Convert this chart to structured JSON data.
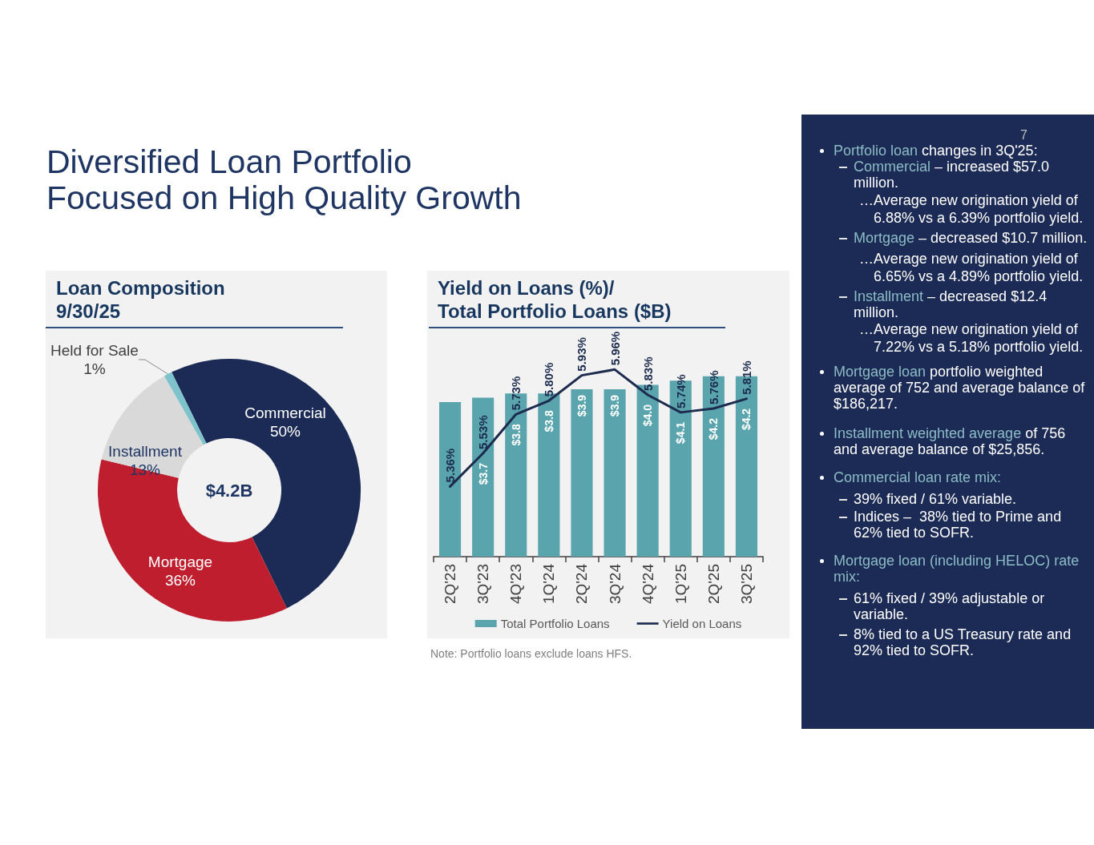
{
  "chart_data": [
    {
      "type": "other",
      "title": "Diversified Loan Portfolio\nFocused on High Quality Growth"
    },
    {
      "type": "donut",
      "title": "Loan Composition\n9/30/25",
      "categories": [
        "Commercial",
        "Mortgage",
        "Installment",
        "Held for Sale"
      ],
      "values": [
        50,
        36,
        13,
        1
      ],
      "colors": [
        "#1b2b55",
        "#be1e2d",
        "#d9d9d9",
        "#7ec3cb"
      ],
      "value_labels": [
        "50%",
        "36%",
        "13%",
        "1%"
      ],
      "annotations": [
        "$4.2B"
      ]
    },
    {
      "type": "bar",
      "title": "Yield on Loans (%)/\nTotal Portfolio Loans ($B)",
      "categories": [
        "2Q'23",
        "3Q'23",
        "4Q'23",
        "1Q'24",
        "2Q'24",
        "3Q'24",
        "4Q'24",
        "1Q'25",
        "2Q'25",
        "3Q'25"
      ],
      "series": [
        {
          "name": "Total Portfolio Loans",
          "type": "bar",
          "color": "#5aa5ad",
          "values": [
            3.6,
            3.7,
            3.8,
            3.8,
            3.9,
            3.9,
            4.0,
            4.1,
            4.2,
            4.2
          ],
          "value_labels": [
            null,
            "$3.7",
            "$3.8",
            "$3.8",
            "$3.9",
            "$3.9",
            "$4.0",
            "$4.1",
            "$4.2",
            "$4.2"
          ]
        },
        {
          "name": "Yield on Loans",
          "type": "line",
          "axis": "y2",
          "color": "#1c2b4e",
          "values": [
            5.36,
            5.53,
            5.73,
            5.8,
            5.93,
            5.96,
            5.83,
            5.74,
            5.76,
            5.81
          ],
          "value_labels": [
            "5.36%",
            "5.53%",
            "5.73%",
            "5.80%",
            "5.93%",
            "5.96%",
            "5.83%",
            "5.74%",
            "5.76%",
            "5.81%"
          ]
        }
      ],
      "legend": "bottom",
      "tick_labels": "x",
      "annotations": [
        "Note: Portfolio loans exclude loans HFS."
      ]
    },
    {
      "type": "other",
      "annotations": [
        "7",
        "Portfolio loan",
        "changes in 3Q'25:",
        "Commercial",
        "– increased $57.0 million.",
        "…Average new origination yield of 6.88% vs a 6.39% portfolio yield.",
        "Mortgage",
        "– decreased $10.7 million.",
        "…Average new origination yield of 6.65% vs a 4.89% portfolio yield.",
        "Installment",
        "– decreased $12.4 million.",
        "…Average new origination yield of 7.22% vs a 5.18% portfolio yield.",
        "Mortgage loan",
        "portfolio weighted average of 752 and average balance of $186,217.",
        "Installment weighted average",
        "of 756 and average balance of $25,856.",
        "Commercial loan rate mix:",
        "39% fixed / 61% variable.",
        "Indices –  38% tied to Prime and 62% tied to SOFR.",
        "Mortgage loan (including HELOC) rate mix:",
        "61% fixed / 39% adjustable or variable.",
        "8% tied to a US Treasury rate and 92% tied to SOFR."
      ]
    }
  ]
}
